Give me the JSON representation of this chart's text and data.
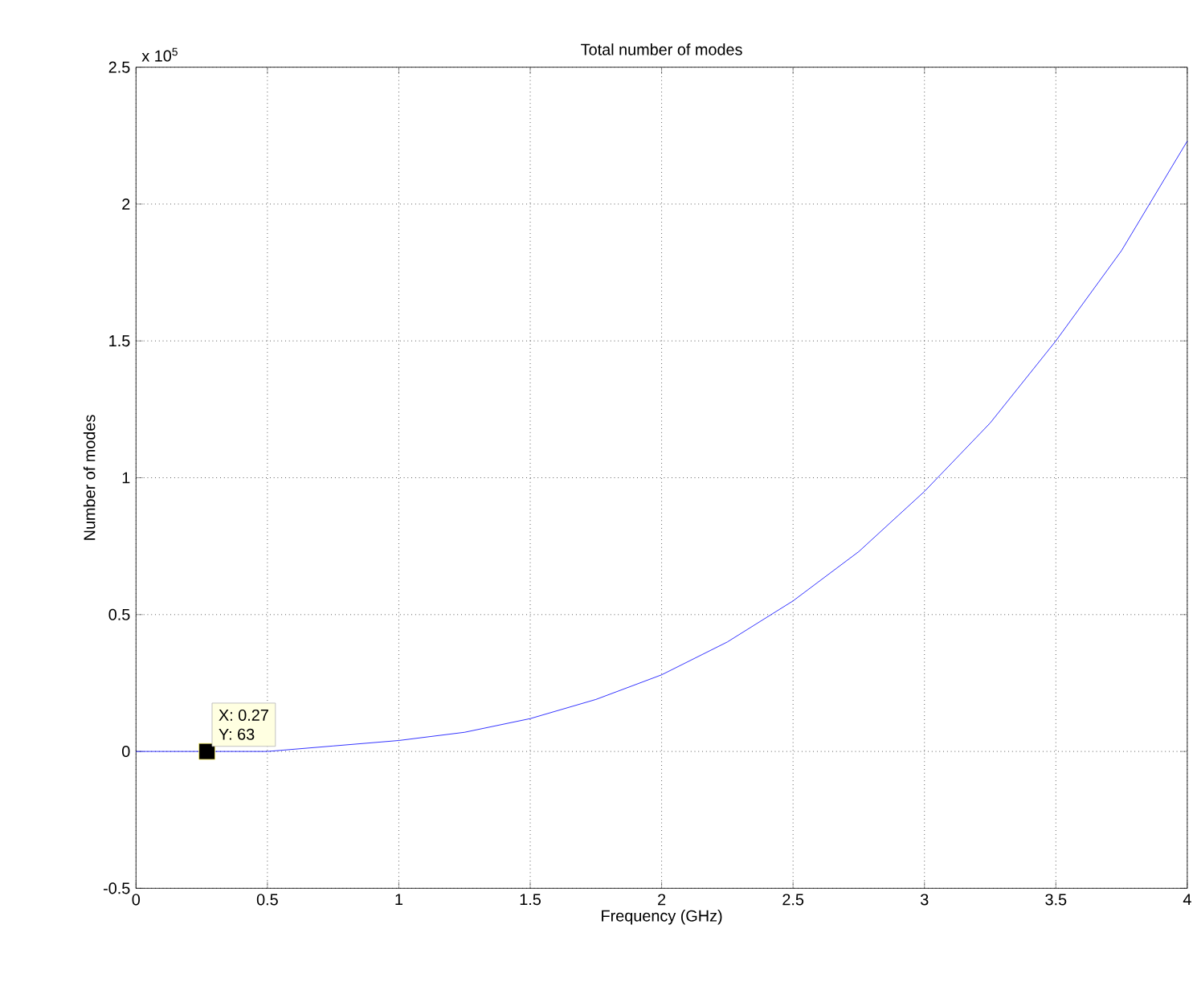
{
  "chart_data": {
    "type": "line",
    "title": "Total number of modes",
    "xlabel": "Frequency (GHz)",
    "ylabel": "Number of modes",
    "x": [
      0,
      0.27,
      0.5,
      0.75,
      1,
      1.25,
      1.5,
      1.75,
      2,
      2.25,
      2.5,
      2.75,
      3,
      3.25,
      3.5,
      3.75,
      4
    ],
    "values": [
      0,
      0,
      0,
      0.02,
      0.04,
      0.07,
      0.12,
      0.19,
      0.28,
      0.4,
      0.55,
      0.73,
      0.95,
      1.2,
      1.5,
      1.83,
      2.23
    ],
    "color": "#0000ff",
    "xlim": [
      0,
      4
    ],
    "ylim": [
      -0.5,
      2.5
    ],
    "xticks": [
      0,
      0.5,
      1,
      1.5,
      2,
      2.5,
      3,
      3.5,
      4
    ],
    "yticks": [
      -0.5,
      0,
      0.5,
      1,
      1.5,
      2,
      2.5
    ],
    "grid": true,
    "annotations": [
      "x 10$^{5}$",
      {
        "text": "X: 0.27",
        "x": 0.27,
        "y": 0
      },
      {
        "text": "Y: 63",
        "x": 0.27,
        "y": 0
      }
    ]
  }
}
